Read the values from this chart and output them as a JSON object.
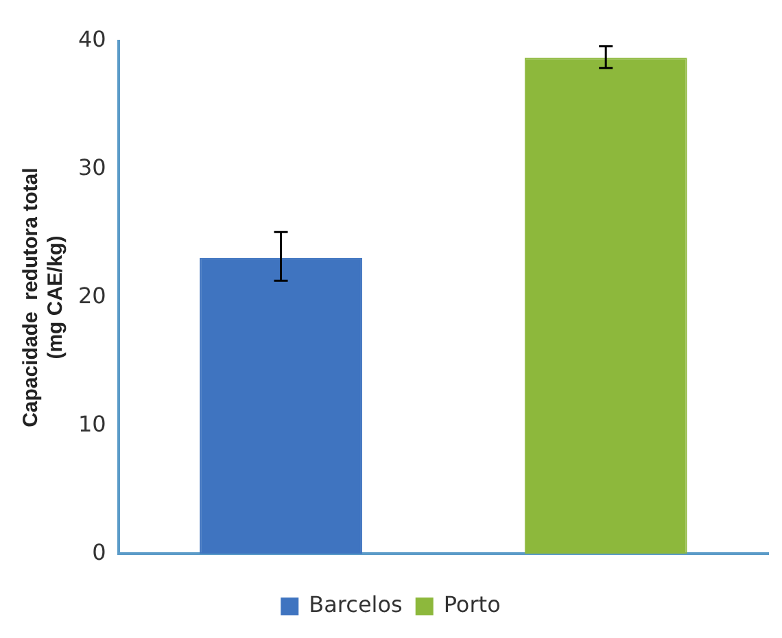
{
  "chart_data": {
    "type": "bar",
    "ylabel": "Capacidade  redutora total\n(mg CAE/kg)",
    "categories": [
      null,
      null
    ],
    "series": [
      {
        "name": "Barcelos",
        "color": "#3f74c0",
        "values": [
          23.1,
          null
        ],
        "errors": [
          [
            21.3,
            25.1
          ],
          null
        ]
      },
      {
        "name": "Porto",
        "color": "#8db83c",
        "values": [
          null,
          38.7
        ],
        "errors": [
          null,
          [
            37.9,
            39.6
          ]
        ]
      }
    ],
    "ylim": [
      0,
      40
    ],
    "yticks": [
      0,
      10,
      20,
      30,
      40
    ],
    "grid": false,
    "legend": "bottom"
  }
}
